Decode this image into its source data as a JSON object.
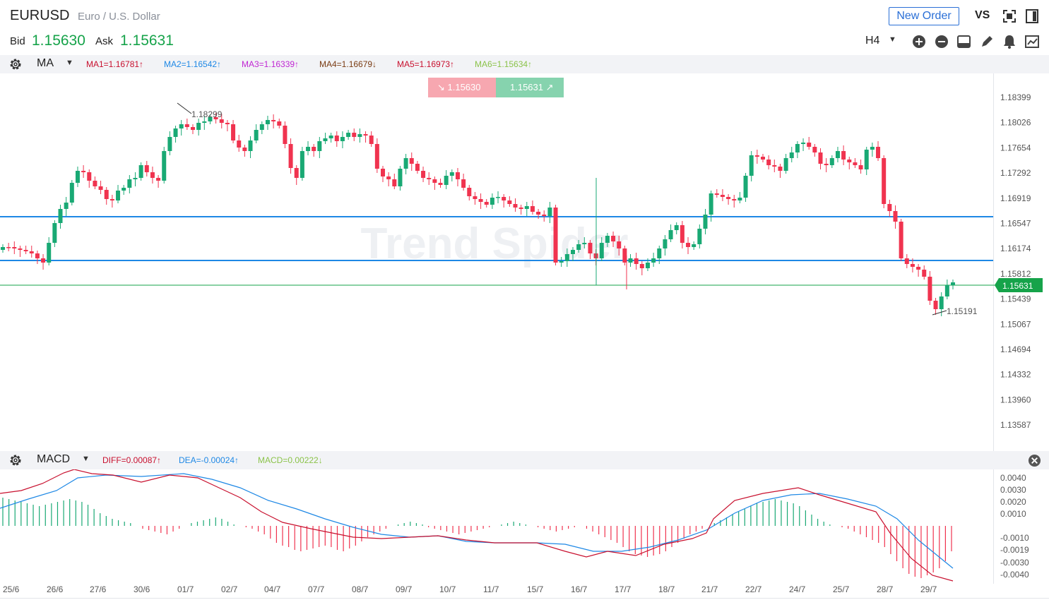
{
  "header": {
    "symbol": "EURUSD",
    "description": "Euro / U.S. Dollar",
    "bid_label": "Bid",
    "bid_value": "1.15630",
    "ask_label": "Ask",
    "ask_value": "1.15631",
    "new_order_label": "New Order",
    "vs_label": "VS",
    "timeframe": "H4"
  },
  "toolbar_icons": [
    "zoom-in-icon",
    "zoom-out-icon",
    "layout-icon",
    "pencil-icon",
    "bell-icon",
    "chart-icon",
    "fullscreen-icon",
    "sidebar-icon"
  ],
  "ma_bar": {
    "name": "MA",
    "values": [
      {
        "text": "MA1=1.16781↑",
        "color": "#c8102e"
      },
      {
        "text": "MA2=1.16542↑",
        "color": "#1e88e5"
      },
      {
        "text": "MA3=1.16339↑",
        "color": "#c026d3"
      },
      {
        "text": "MA4=1.16679↓",
        "color": "#7a3b12"
      },
      {
        "text": "MA5=1.16973↑",
        "color": "#c8102e"
      },
      {
        "text": "MA6=1.15634↑",
        "color": "#8bc34a"
      }
    ]
  },
  "quote_buttons": {
    "sell": "↘ 1.15630",
    "buy": "1.15631 ↗"
  },
  "watermark": "Trend Spider",
  "price_axis": [
    "1.18399",
    "1.18026",
    "1.17654",
    "1.17292",
    "1.16919",
    "1.16547",
    "1.16174",
    "1.15812",
    "1.15439",
    "1.15067",
    "1.14694",
    "1.14332",
    "1.13960",
    "1.13587"
  ],
  "current_price": "1.15631",
  "annotations": {
    "high": "1.18299",
    "low": "1.15191"
  },
  "macd_bar": {
    "name": "MACD",
    "values": [
      {
        "text": "DIFF=0.00087↑",
        "color": "#c8102e"
      },
      {
        "text": "DEA=-0.00024↑",
        "color": "#1e88e5"
      },
      {
        "text": "MACD=0.00222↓",
        "color": "#8bc34a"
      }
    ]
  },
  "macd_axis": [
    "0.0040",
    "0.0030",
    "0.0020",
    "0.0010",
    "-0.0010",
    "-0.0019",
    "-0.0030",
    "-0.0040"
  ],
  "date_axis": [
    "25/6",
    "26/6",
    "27/6",
    "30/6",
    "01/7",
    "02/7",
    "04/7",
    "07/7",
    "08/7",
    "09/7",
    "10/7",
    "11/7",
    "15/7",
    "16/7",
    "17/7",
    "18/7",
    "21/7",
    "22/7",
    "24/7",
    "25/7",
    "28/7",
    "29/7"
  ],
  "colors": {
    "up": "#19a974",
    "down": "#f0334f",
    "level_line": "#1e88e5",
    "price_line": "#16a34a",
    "panel_bg": "#f2f3f6"
  }
}
